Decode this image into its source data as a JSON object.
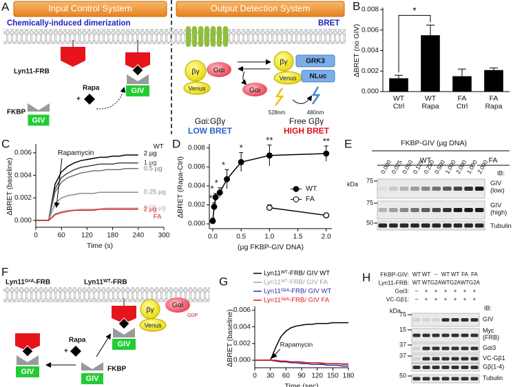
{
  "panels": {
    "A": {
      "label": "A",
      "input_title": "Input Control System",
      "output_title": "Output Detection System",
      "input_subtitle": "Chemically-induced dimerization",
      "output_subtitle": "BRET",
      "lyn": "Lyn11-FRB",
      "rapa": "Rapa",
      "plus": "+",
      "fkbp": "FKBP",
      "giv": "GIV",
      "gai": "Gαi",
      "bg": "βγ",
      "venus": "Venus",
      "grk3": "GRK3",
      "nluc": "NLuc",
      "nm528": "528nm",
      "nm480": "480nm",
      "complex": "Gαi:Gβγ",
      "low": "LOW BRET",
      "free": "Free Gβγ",
      "high": "HIGH BRET"
    },
    "E": {
      "label": "E",
      "title": "FKBP-GIV (µg DNA)",
      "groups": [
        "WT",
        "FA"
      ],
      "lanes": [
        "0.000",
        "0.025",
        "0.050",
        "0.125",
        "0.250",
        "0.500",
        "1.000",
        "2.000",
        "1.000",
        "2.000"
      ],
      "kda": "kDa",
      "markers": [
        "75",
        "75",
        "50"
      ],
      "ib": "IB:",
      "blots": [
        "GIV (low)",
        "GIV (high)",
        "Tubulin"
      ]
    },
    "F": {
      "label": "F",
      "lyn_g2a": "Lyn11ᴳ²ᴬ-FRB",
      "lyn_wt": "Lyn11ᵂᵀ-FRB",
      "rapa": "Rapa",
      "plus": "+",
      "fkbp": "FKBP",
      "giv": "GIV",
      "bg": "βγ",
      "venus": "Venus",
      "gai": "Gαi",
      "gdp": "GDP"
    },
    "H": {
      "label": "H",
      "rows": [
        {
          "name": "FKBP-GIV:",
          "cells": [
            "WT",
            "WT",
            "–",
            "WT",
            "WT",
            "FA",
            "FA"
          ]
        },
        {
          "name": "Lyn11-FRB:",
          "cells": [
            "WT",
            "WT",
            "G2A",
            "WT",
            "G2A",
            "WT",
            "G2A"
          ]
        },
        {
          "name": "Gαi3:",
          "cells": [
            "–",
            "+",
            "+",
            "+",
            "+",
            "+",
            "+"
          ]
        },
        {
          "name": "VC-Gβ1:",
          "cells": [
            "–",
            "+",
            "+",
            "+",
            "+",
            "+",
            "+"
          ]
        }
      ],
      "kda": "kDa",
      "ib": "IB:",
      "markers": [
        "75",
        "15",
        "37",
        "37",
        "50"
      ],
      "blots": [
        "GIV",
        "Myc (FRB)",
        "Gαi3",
        "VC-Gβ1",
        "Gβ(1-4)",
        "Tubulin"
      ]
    }
  },
  "chart_data": [
    {
      "type": "bar",
      "panel_label": "B",
      "ylabel": "ΔBRET (no GIV)",
      "categories": [
        "WT Ctrl",
        "WT Rapa",
        "FA Ctrl",
        "FA Rapa"
      ],
      "values": [
        0.0013,
        0.0055,
        0.0015,
        0.0021
      ],
      "errors": [
        0.0003,
        0.001,
        0.0007,
        0.0002
      ],
      "color": "#000000",
      "significance": "*",
      "ylim": [
        0,
        0.008
      ],
      "yticks": [
        {
          "value": 0,
          "label": "0.000"
        },
        {
          "value": 0.002,
          "label": "0.002"
        },
        {
          "value": 0.004,
          "label": "0.004"
        },
        {
          "value": 0.006,
          "label": "0.006"
        },
        {
          "value": 0.008,
          "label": "0.008"
        }
      ]
    },
    {
      "type": "line",
      "panel_label": "C",
      "ylabel": "ΔBRET (baseline)",
      "xlabel": "Time (s)",
      "annotation": "Rapamycin",
      "group_labels": [
        "WT",
        "FA"
      ],
      "x": [
        0,
        15,
        30,
        45,
        60,
        75,
        90,
        105,
        120,
        135,
        150,
        165,
        180,
        195,
        210,
        225,
        240
      ],
      "series": [
        {
          "name": "2 µg",
          "color": "#000000",
          "values": [
            0,
            0,
            0,
            0.0032,
            0.0043,
            0.0048,
            0.0051,
            0.0053,
            0.0054,
            0.0055,
            0.0056,
            0.0056,
            0.0057,
            0.0057,
            0.0058,
            0.0058,
            0.0058
          ]
        },
        {
          "name": "1 µg",
          "color": "#444444",
          "values": [
            0,
            0,
            0,
            0.0028,
            0.0038,
            0.0042,
            0.0045,
            0.0047,
            0.0048,
            0.0049,
            0.005,
            0.005,
            0.005,
            0.0051,
            0.0051,
            0.0051,
            0.0051
          ]
        },
        {
          "name": "0.5 µg",
          "color": "#707070",
          "values": [
            0,
            0,
            0,
            0.0025,
            0.0034,
            0.0038,
            0.004,
            0.0042,
            0.0043,
            0.0044,
            0.0044,
            0.0045,
            0.0045,
            0.0045,
            0.0046,
            0.0046,
            0.0046
          ]
        },
        {
          "name": "0.25 µg",
          "color": "#8c8c8c",
          "values": [
            0,
            0,
            0,
            0.0015,
            0.002,
            0.0022,
            0.0023,
            0.0024,
            0.0024,
            0.0024,
            0.0025,
            0.0025,
            0.0025,
            0.0025,
            0.0025,
            0.0025,
            0.0025
          ]
        },
        {
          "name": "0.05 µg",
          "color": "#b5b5b5",
          "values": [
            0,
            0,
            0,
            0.0006,
            0.0008,
            0.0009,
            0.0009,
            0.001,
            0.001,
            0.001,
            0.001,
            0.0011,
            0.0011,
            0.0011,
            0.0011,
            0.0011,
            0.0011
          ]
        },
        {
          "name": "2 µg",
          "color": "#e01818",
          "values": [
            0,
            0,
            0,
            0.0005,
            0.0007,
            0.0008,
            0.0009,
            0.0009,
            0.0009,
            0.0009,
            0.001,
            0.001,
            0.001,
            0.001,
            0.001,
            0.001,
            0.001
          ]
        }
      ],
      "xlim": [
        0,
        300
      ],
      "xticks": [
        0,
        60,
        120,
        180,
        240,
        300
      ],
      "ylim": [
        -0.0006,
        0.0066
      ],
      "yticks": [
        {
          "value": 0,
          "label": "0.000"
        },
        {
          "value": 0.002,
          "label": "0.002"
        },
        {
          "value": 0.004,
          "label": "0.004"
        },
        {
          "value": 0.006,
          "label": "0.006"
        }
      ]
    },
    {
      "type": "line",
      "panel_label": "D",
      "ylabel": "ΔBRET (Rapa-Ctrl)",
      "xlabel": "(µg FKBP-GIV DNA)",
      "legend": "right",
      "series": [
        {
          "name": "WT",
          "color": "#000000",
          "marker_fill": true,
          "x": [
            0,
            0.025,
            0.05,
            0.125,
            0.25,
            0.5,
            1,
            2
          ],
          "values": [
            0.0003,
            0.0018,
            0.0028,
            0.0033,
            0.0047,
            0.0065,
            0.0072,
            0.0074
          ],
          "errors": [
            0.0003,
            0.0004,
            0.0004,
            0.0005,
            0.001,
            0.001,
            0.0011,
            0.0008
          ],
          "significance": [
            null,
            "*",
            "*",
            "*",
            "*",
            "*",
            "**",
            "**"
          ]
        },
        {
          "name": "FA",
          "color": "#000000",
          "marker_fill": false,
          "x": [
            1,
            2
          ],
          "values": [
            0.0017,
            0.0009
          ],
          "errors": [
            0.0003,
            0.0002
          ]
        }
      ],
      "xlim": [
        -0.06,
        2.1
      ],
      "xticks": [
        {
          "value": 0,
          "label": "0.0"
        },
        0.5,
        {
          "value": 1,
          "label": "1.0"
        },
        1.5,
        {
          "value": 2,
          "label": "2.0"
        }
      ],
      "ylim": [
        -0.0005,
        0.0082
      ],
      "yticks": [
        {
          "value": 0,
          "label": "0.000"
        },
        {
          "value": 0.002,
          "label": "0.002"
        },
        {
          "value": 0.004,
          "label": "0.004"
        },
        {
          "value": 0.006,
          "label": "0.006"
        },
        {
          "value": 0.008,
          "label": "0.008"
        }
      ]
    },
    {
      "type": "line",
      "panel_label": "G",
      "ylabel": "ΔBRET (baseline)",
      "xlabel": "Time (sec)",
      "annotation": "Rapamycin",
      "legend": "top",
      "x": [
        0,
        10,
        20,
        30,
        40,
        50,
        60,
        70,
        80,
        90,
        100,
        110,
        120,
        130,
        140,
        150,
        160,
        170,
        180
      ],
      "series": [
        {
          "name": "Lyn11ᵂᵀ-FRB/ GIV WT",
          "color": "#000000",
          "values": [
            0,
            0,
            0,
            0,
            0.0015,
            0.0028,
            0.0035,
            0.0039,
            0.0041,
            0.0042,
            0.0043,
            0.0043,
            0.0044,
            0.0044,
            0.0044,
            0.0045,
            0.0045,
            0.0045,
            0.0045
          ]
        },
        {
          "name": "Lyn11ᵂᵀ-FRB/ GIV FA",
          "color": "#a0a0a0",
          "values": [
            0,
            0,
            0,
            0,
            -0.0001,
            -0.0001,
            -0.0002,
            -0.0002,
            -0.0002,
            -0.0003,
            -0.0003,
            -0.0003,
            -0.0003,
            -0.0003,
            -0.0004,
            -0.0004,
            -0.0004,
            -0.0004,
            -0.0004
          ]
        },
        {
          "name": "Lyn11ᴳ²ᴬ-FRB/ GIV WT",
          "color": "#2a2aa8",
          "values": [
            0,
            0,
            0,
            0,
            -0.0001,
            -0.0002,
            -0.0002,
            -0.0003,
            -0.0003,
            -0.0004,
            -0.0004,
            -0.0005,
            -0.0005,
            -0.0005,
            -0.0006,
            -0.0006,
            -0.0006,
            -0.0007,
            -0.0007
          ]
        },
        {
          "name": "Lyn11ᴳ²ᴬ-FRB/ GIV FA",
          "color": "#e01818",
          "values": [
            0,
            0,
            0,
            0,
            0,
            -0.0001,
            -0.0001,
            -0.0002,
            -0.0002,
            -0.0002,
            -0.0003,
            -0.0003,
            -0.0003,
            -0.0004,
            -0.0004,
            -0.0004,
            -0.0004,
            -0.0005,
            -0.0005
          ]
        }
      ],
      "xlim": [
        0,
        180
      ],
      "xticks": [
        0,
        30,
        60,
        90,
        120,
        150,
        180
      ],
      "ylim": [
        -0.0009,
        0.0062
      ],
      "yticks": [
        {
          "value": 0,
          "label": "0.000"
        },
        {
          "value": 0.002,
          "label": "0.002"
        },
        {
          "value": 0.004,
          "label": "0.004"
        },
        {
          "value": 0.006,
          "label": "0.006"
        }
      ]
    }
  ]
}
